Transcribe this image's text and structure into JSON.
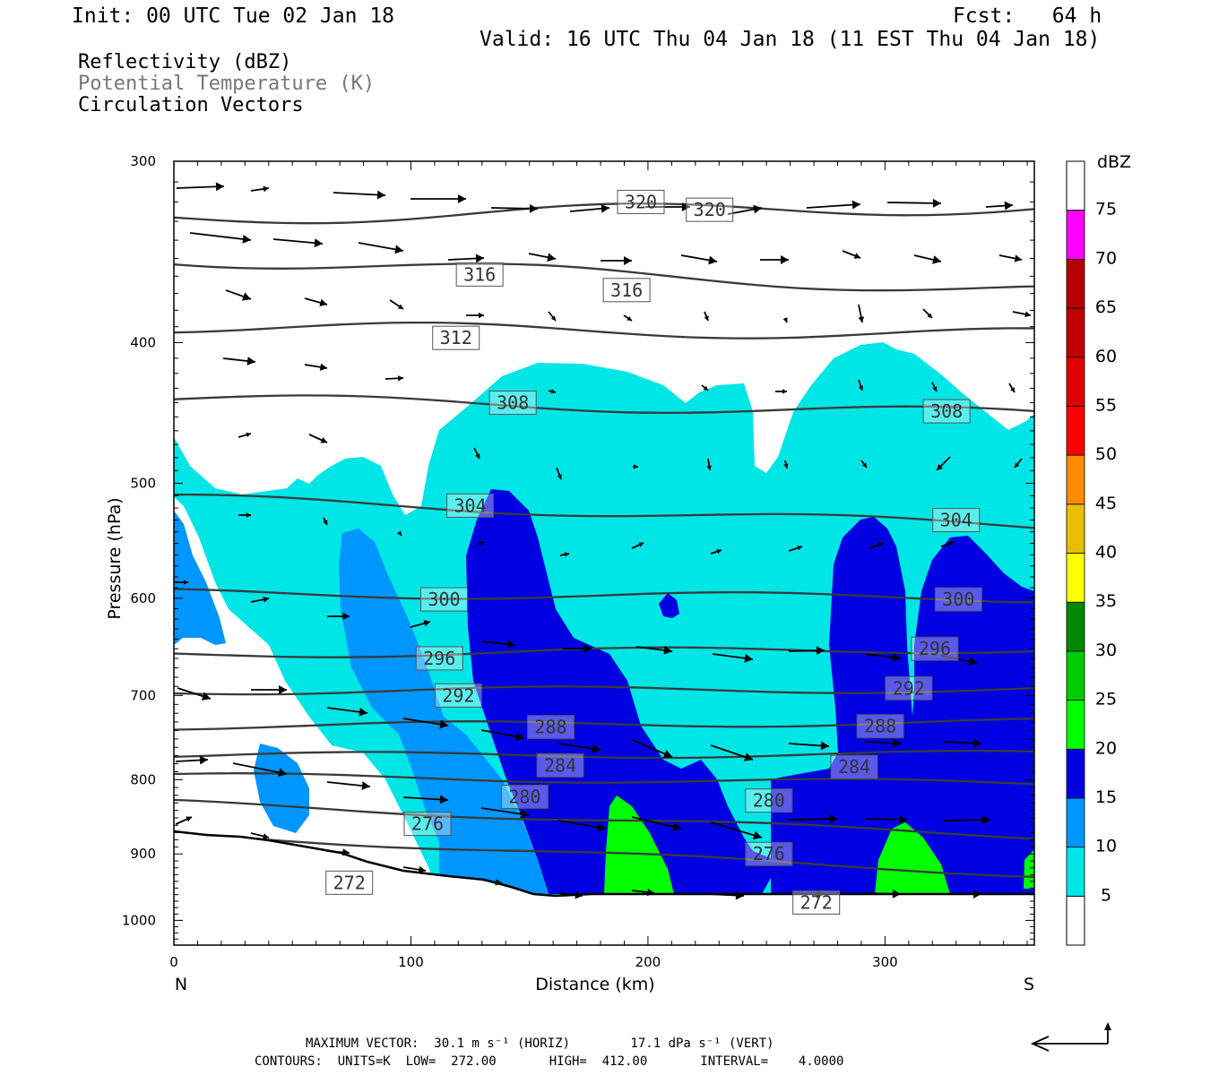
{
  "header": {
    "init": "Init: 00 UTC Tue 02 Jan 18",
    "fcst": "Fcst:   64 h",
    "valid": "Valid: 16 UTC Thu 04 Jan 18 (11 EST Thu 04 Jan 18)"
  },
  "fields": {
    "reflectivity": "Reflectivity (dBZ)",
    "theta": "Potential Temperature (K)",
    "vectors": "Circulation Vectors"
  },
  "footer": {
    "max_vector": "MAXIMUM VECTOR:  30.1 m s⁻¹ (HORIZ)        17.1 dPa s⁻¹ (VERT)",
    "contours": "CONTOURS:  UNITS=K  LOW=  272.00       HIGH=  412.00       INTERVAL=    4.0000"
  },
  "colors": {
    "dbz5": "#00e6e6",
    "dbz10": "#0096ff",
    "dbz15": "#0000e0",
    "dbz20": "#00ff00",
    "dbz25": "#00cc00",
    "dbz30": "#008800",
    "dbz35": "#ffff00",
    "dbz40": "#e6c000",
    "dbz45": "#ff8c00",
    "dbz50": "#ff0000",
    "dbz55": "#e00000",
    "dbz60": "#c00000",
    "dbz65": "#b40000",
    "dbz70": "#ff00ff",
    "dbz75": "#9955cc",
    "contour": "#3a3a3a"
  },
  "chart_data": {
    "type": "cross-section",
    "xlabel": "Distance (km)",
    "ylabel": "Pressure (hPa)",
    "x_ticks": [
      0,
      100,
      200,
      300
    ],
    "y_ticks": [
      300,
      400,
      500,
      600,
      700,
      800,
      900,
      1000
    ],
    "xlim": [
      0,
      363
    ],
    "ylim": [
      300,
      1040
    ],
    "y_scale": "log-pressure",
    "left_end": "N",
    "right_end": "S",
    "colorbar": {
      "unit": "dBZ",
      "levels": [
        5,
        10,
        15,
        20,
        25,
        30,
        35,
        40,
        45,
        50,
        55,
        60,
        65,
        70,
        75
      ]
    },
    "theta_contours": [
      {
        "label": "320",
        "p_left": 328,
        "p_right": 322
      },
      {
        "label": "316",
        "p_left": 350,
        "p_right": 368
      },
      {
        "label": "312",
        "p_left": 390,
        "p_right": 395
      },
      {
        "label": "308",
        "p_left": 437,
        "p_right": 448
      },
      {
        "label": "304",
        "p_left": 512,
        "p_right": 535
      },
      {
        "label": "300",
        "p_left": 595,
        "p_right": 600
      },
      {
        "label": "296",
        "p_left": 656,
        "p_right": 650
      },
      {
        "label": "292",
        "p_left": 695,
        "p_right": 693
      },
      {
        "label": "288",
        "p_left": 735,
        "p_right": 730
      },
      {
        "label": "284",
        "p_left": 770,
        "p_right": 768
      },
      {
        "label": "280",
        "p_left": 795,
        "p_right": 805
      },
      {
        "label": "276",
        "p_left": 830,
        "p_right": 875
      },
      {
        "label": "272",
        "p_left": 872,
        "p_right": 930
      }
    ],
    "contour_labels": [
      {
        "label": "320",
        "x": 197,
        "p": 320
      },
      {
        "label": "320",
        "x": 226,
        "p": 324
      },
      {
        "label": "316",
        "x": 129,
        "p": 359
      },
      {
        "label": "316",
        "x": 191,
        "p": 368
      },
      {
        "label": "312",
        "x": 119,
        "p": 397
      },
      {
        "label": "308",
        "x": 143,
        "p": 440
      },
      {
        "label": "308",
        "x": 326,
        "p": 446
      },
      {
        "label": "304",
        "x": 125,
        "p": 518
      },
      {
        "label": "304",
        "x": 330,
        "p": 530
      },
      {
        "label": "300",
        "x": 114,
        "p": 601
      },
      {
        "label": "300",
        "x": 331,
        "p": 601
      },
      {
        "label": "296",
        "x": 112,
        "p": 660
      },
      {
        "label": "296",
        "x": 321,
        "p": 650
      },
      {
        "label": "292",
        "x": 120,
        "p": 700
      },
      {
        "label": "292",
        "x": 310,
        "p": 692
      },
      {
        "label": "288",
        "x": 159,
        "p": 736
      },
      {
        "label": "288",
        "x": 298,
        "p": 735
      },
      {
        "label": "284",
        "x": 163,
        "p": 782
      },
      {
        "label": "284",
        "x": 287,
        "p": 784
      },
      {
        "label": "280",
        "x": 148,
        "p": 822
      },
      {
        "label": "280",
        "x": 251,
        "p": 827
      },
      {
        "label": "276",
        "x": 107,
        "p": 858
      },
      {
        "label": "276",
        "x": 251,
        "p": 900
      },
      {
        "label": "272",
        "x": 74,
        "p": 942
      },
      {
        "label": "272",
        "x": 271,
        "p": 972
      }
    ],
    "max_vector": {
      "horiz": 30.1,
      "horiz_unit": "m s-1",
      "vert": 17.1,
      "vert_unit": "dPa s-1"
    },
    "contour_info": {
      "units": "K",
      "low": 272.0,
      "high": 412.0,
      "interval": 4.0
    }
  }
}
